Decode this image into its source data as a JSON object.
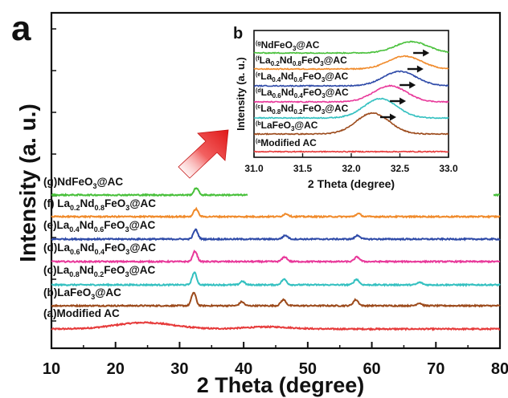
{
  "chart_data": [
    {
      "panel": "a",
      "type": "line",
      "xlabel": "2 Theta (degree)",
      "ylabel": "Intensity (a. u.)",
      "xlim": [
        10,
        80
      ],
      "xticks": [
        "10",
        "20",
        "30",
        "40",
        "50",
        "60",
        "70",
        "80"
      ],
      "grid": false,
      "series": [
        {
          "name": "(a)Modified AC",
          "color": "#e63a3a",
          "peaks": [
            {
              "x": 24.5,
              "height": 0.6,
              "width": 4.5
            },
            {
              "x": 43.8,
              "height": 0.2,
              "width": 3.5
            }
          ]
        },
        {
          "name": "(b)LaFeO3@AC",
          "color": "#9c4a1b",
          "peaks": [
            {
              "x": 32.2,
              "height": 1.0,
              "width": 0.35
            },
            {
              "x": 39.7,
              "height": 0.3,
              "width": 0.35
            },
            {
              "x": 46.2,
              "height": 0.45,
              "width": 0.4
            },
            {
              "x": 57.5,
              "height": 0.45,
              "width": 0.4
            },
            {
              "x": 67.4,
              "height": 0.2,
              "width": 0.4
            }
          ]
        },
        {
          "name": "(c)La0.8Nd0.2FeO3@AC",
          "color": "#33c0c0",
          "peaks": [
            {
              "x": 32.3,
              "height": 1.0,
              "width": 0.35
            },
            {
              "x": 39.8,
              "height": 0.3,
              "width": 0.35
            },
            {
              "x": 46.3,
              "height": 0.45,
              "width": 0.4
            },
            {
              "x": 57.6,
              "height": 0.45,
              "width": 0.4
            },
            {
              "x": 67.5,
              "height": 0.2,
              "width": 0.4
            }
          ]
        },
        {
          "name": "(d)La0.6Nd0.4FeO3@AC",
          "color": "#e8389a",
          "peaks": [
            {
              "x": 32.4,
              "height": 0.9,
              "width": 0.35
            },
            {
              "x": 46.4,
              "height": 0.4,
              "width": 0.4
            },
            {
              "x": 57.7,
              "height": 0.4,
              "width": 0.4
            }
          ]
        },
        {
          "name": "(e)La0.4Nd0.6FeO3@AC",
          "color": "#2e4aa8",
          "peaks": [
            {
              "x": 32.5,
              "height": 0.9,
              "width": 0.35
            },
            {
              "x": 46.5,
              "height": 0.35,
              "width": 0.4
            },
            {
              "x": 57.8,
              "height": 0.35,
              "width": 0.4
            }
          ]
        },
        {
          "name": "(f) La0.2Nd0.8FeO3@AC",
          "color": "#f08a2a",
          "peaks": [
            {
              "x": 32.55,
              "height": 0.8,
              "width": 0.35
            },
            {
              "x": 46.6,
              "height": 0.3,
              "width": 0.4
            },
            {
              "x": 57.9,
              "height": 0.3,
              "width": 0.4
            }
          ]
        },
        {
          "name": "(g)NdFeO3@AC",
          "color": "#48c03a",
          "peaks": [
            {
              "x": 32.6,
              "height": 0.8,
              "width": 0.35
            },
            {
              "x": 46.7,
              "height": 0.25,
              "width": 0.4
            },
            {
              "x": 58.0,
              "height": 0.25,
              "width": 0.4
            }
          ]
        }
      ]
    },
    {
      "panel": "b",
      "type": "line",
      "xlabel": "2 Theta (degree)",
      "ylabel": "Intensity (a. u.)",
      "xlim": [
        31.0,
        33.0
      ],
      "xticks": [
        "31.0",
        "31.5",
        "32.0",
        "32.5",
        "33.0"
      ],
      "grid": false,
      "series": [
        {
          "name": "Modified AC",
          "letter": "(a",
          "peak_x": null
        },
        {
          "name": "LaFeO3@AC",
          "letter": "(b",
          "peak_x": 32.22
        },
        {
          "name": "La0.8Nd0.2FeO3@AC",
          "letter": "(c",
          "peak_x": 32.3
        },
        {
          "name": "La0.6Nd0.4FeO3@AC",
          "letter": "(d",
          "peak_x": 32.4
        },
        {
          "name": "La0.4Nd0.6FeO3@AC",
          "letter": "(e",
          "peak_x": 32.5
        },
        {
          "name": "La0.2Nd0.8FeO3@AC",
          "letter": "(f",
          "peak_x": 32.55
        },
        {
          "name": "NdFeO3@AC",
          "letter": "(g",
          "peak_x": 32.62
        }
      ],
      "annotations": [
        "arrow indicating peak shift to higher 2 Theta"
      ]
    }
  ],
  "panel_labels": {
    "a": "a",
    "b": "b"
  }
}
